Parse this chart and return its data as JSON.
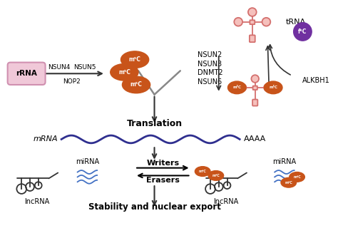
{
  "bg_color": "#ffffff",
  "rrna_color": "#f0c8d8",
  "rrna_border": "#d090b0",
  "m5c_color": "#c8541a",
  "m5c_text": "#ffffff",
  "trna_color": "#d4706e",
  "trna_fill": "#f5c0bc",
  "f5c_color": "#7030a0",
  "arrow_color": "#333333",
  "mrna_wave_color": "#2f2f8f",
  "lncrna_color": "#333333",
  "mirna_color": "#4472c4",
  "funnel_color": "#888888",
  "title": "Translation",
  "subtitle": "Stability and nuclear export",
  "labels": {
    "rrna": "rRNA",
    "nsun4": "NSUN4",
    "nsun5": "NSUN5",
    "nop2": "NOP2",
    "trna": "tRNA",
    "nsun2": "NSUN2",
    "nsun3": "NSUN3",
    "dnmt2": "DNMT2",
    "nsun6": "NSUN6",
    "alkbh1": "ALKBH1",
    "mrna": "mRNA",
    "aaaa": "AAAA",
    "lncrna": "lncRNA",
    "mirna_left": "miRNA",
    "mirna_right": "miRNA",
    "lncrna_right": "lncRNA",
    "writers": "Writers",
    "erasers": "Erasers",
    "m5c": "m⁵C",
    "f5c": "f⁵C"
  }
}
